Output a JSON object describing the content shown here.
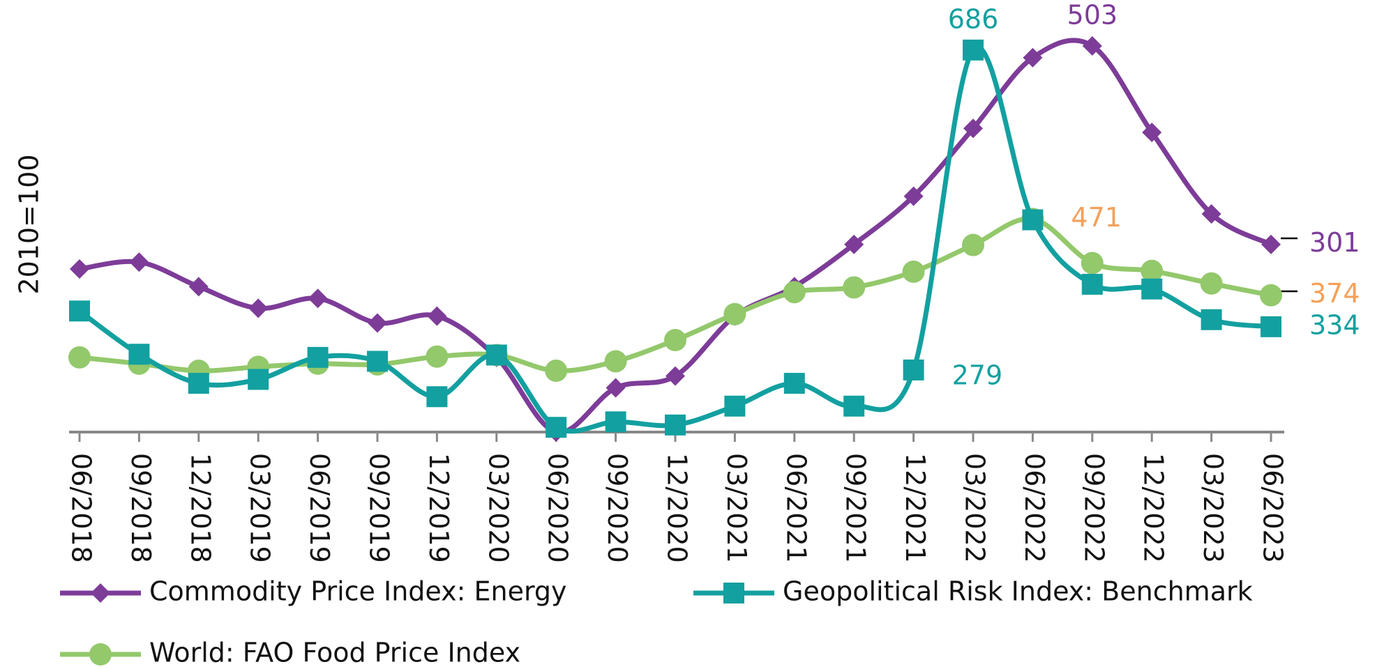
{
  "chart_data": {
    "type": "line",
    "y_label": "2010=100",
    "categories": [
      "06/2018",
      "09/2018",
      "12/2018",
      "03/2019",
      "06/2019",
      "09/2019",
      "12/2019",
      "03/2020",
      "06/2020",
      "09/2020",
      "12/2020",
      "03/2021",
      "06/2021",
      "09/2021",
      "12/2021",
      "03/2022",
      "06/2022",
      "09/2022",
      "12/2022",
      "03/2023",
      "06/2023"
    ],
    "ylim": [
      200,
      700
    ],
    "y2lim": [
      110,
      510
    ],
    "series": [
      {
        "name": "Commodity Price Index: Energy",
        "color": "#7d3c98",
        "label_color": "#7d3c98",
        "marker": "diamond",
        "axis": "y2",
        "labeled": [
          17,
          20
        ],
        "values": [
          276,
          283,
          258,
          236,
          246,
          221,
          228,
          186,
          110,
          155,
          167,
          228,
          258,
          301,
          350,
          419,
          491,
          503,
          415,
          332,
          301
        ]
      },
      {
        "name": "Geopolitical Risk Index: Benchmark",
        "color": "#13a0a0",
        "label_color": "#13a0a0",
        "marker": "square",
        "labeled": [
          14,
          15,
          20
        ],
        "values": [
          354,
          299,
          262,
          267,
          295,
          290,
          245,
          298,
          206,
          213,
          209,
          233,
          262,
          233,
          279,
          686,
          470,
          388,
          382,
          343,
          334
        ]
      },
      {
        "name": "World: FAO Food Price Index",
        "color": "#93c86b",
        "label_color": "#f5a05a",
        "marker": "circle",
        "labeled": [
          16,
          20
        ],
        "values": [
          295,
          287,
          278,
          283,
          287,
          286,
          296,
          298,
          278,
          290,
          317,
          350,
          378,
          384,
          404,
          438,
          471,
          415,
          405,
          389,
          374
        ]
      }
    ]
  }
}
